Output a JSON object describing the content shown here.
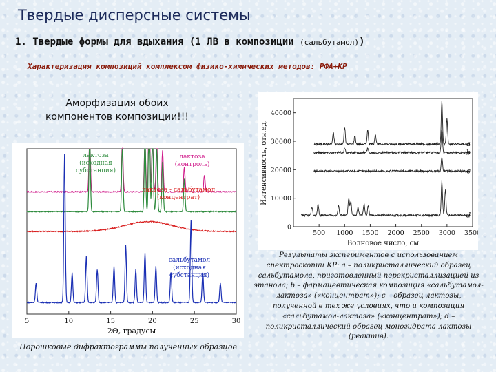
{
  "slide": {
    "title": "Твердые дисперсные системы",
    "subtitle_main": "1. Твердые формы для вдыхания (1 ЛВ в композиции ",
    "subtitle_paren": "(сальбутамол)",
    "subtitle_end": ")",
    "method": "Характеризация композиций комплексом физико-химических методов: РФА+КР",
    "amorph_line1": "Аморфизация обоих",
    "amorph_line2": "компонентов композиции!!!",
    "caption_left": "Порошковые дифрактограммы полученных образцов",
    "caption_right": "Результаты экспериментов с использованием спектроскопии КР: a – поликристаллический образец сальбутамола, приготовленный перекристаллизацией из этанола; b – фармацевтическая композиция «сальбутамол-лактоза» («концентрат»); c – образец лактозы, полученной в тех же условиях, что и композиция «сальбутамол-лактоза» («концентрат»); d – поликристаллический образец моногидрата лактозы (реактив)."
  },
  "chart_data": [
    {
      "type": "line",
      "xlabel": "2Θ, градусы",
      "ylabel": "",
      "xlim": [
        5,
        30
      ],
      "x_ticks": [
        "5",
        "10",
        "15",
        "20",
        "25",
        "30"
      ],
      "grid": false,
      "series": [
        {
          "name": "лактоза (контроль)",
          "color": "#d01c8b",
          "baseline": 0.74,
          "peaks": [
            [
              12.5,
              0.35
            ],
            [
              16.4,
              0.3
            ],
            [
              19.1,
              0.3
            ],
            [
              19.6,
              0.52
            ],
            [
              20.0,
              0.4
            ],
            [
              20.5,
              0.32
            ],
            [
              21.2,
              0.25
            ],
            [
              23.8,
              0.15
            ],
            [
              26.2,
              0.1
            ]
          ]
        },
        {
          "name": "лактоза (исходная субстанция)",
          "color": "#2e8b3d",
          "baseline": 0.62,
          "peaks": [
            [
              12.5,
              0.45
            ],
            [
              16.4,
              0.4
            ],
            [
              19.1,
              0.45
            ],
            [
              19.6,
              0.7
            ],
            [
              20.0,
              0.55
            ],
            [
              20.5,
              0.4
            ],
            [
              21.2,
              0.3
            ],
            [
              23.8,
              0.2
            ]
          ]
        },
        {
          "name": "лактоза - сальбутамол (концентрат)",
          "color": "#d81e1e",
          "baseline": 0.5,
          "halo": true,
          "peaks": []
        },
        {
          "name": "сальбутамол (исходная субстанция)",
          "color": "#1a2fb4",
          "baseline": 0.07,
          "peaks": [
            [
              6.1,
              0.12
            ],
            [
              9.5,
              0.9
            ],
            [
              10.4,
              0.18
            ],
            [
              12.1,
              0.28
            ],
            [
              13.4,
              0.2
            ],
            [
              15.4,
              0.22
            ],
            [
              16.8,
              0.35
            ],
            [
              18.0,
              0.2
            ],
            [
              19.1,
              0.3
            ],
            [
              20.4,
              0.22
            ],
            [
              22.2,
              0.18
            ],
            [
              24.6,
              0.5
            ],
            [
              26.0,
              0.18
            ],
            [
              28.1,
              0.12
            ]
          ]
        }
      ]
    },
    {
      "type": "line",
      "xlabel": "Волновое число, см",
      "ylabel": "Интенсивность, отн.ед.",
      "xlim": [
        0,
        3500
      ],
      "ylim": [
        0,
        45000
      ],
      "x_ticks": [
        "500",
        "1000",
        "1500",
        "2000",
        "2500",
        "3000",
        "3500"
      ],
      "y_ticks": [
        "0",
        "10000",
        "20000",
        "30000",
        "40000"
      ],
      "grid": false,
      "series": [
        {
          "name": "a",
          "color": "#222",
          "offset": 29000,
          "peaks": [
            [
              780,
              4000
            ],
            [
              1000,
              6000
            ],
            [
              1200,
              3000
            ],
            [
              1450,
              5000
            ],
            [
              1600,
              3500
            ],
            [
              2900,
              15000
            ],
            [
              3000,
              9000
            ]
          ]
        },
        {
          "name": "b",
          "color": "#222",
          "offset": 26000,
          "peaks": [
            [
              1000,
              1500
            ],
            [
              1450,
              1500
            ],
            [
              2900,
              8000
            ]
          ]
        },
        {
          "name": "c",
          "color": "#222",
          "offset": 19500,
          "peaks": [
            [
              2900,
              5000
            ]
          ]
        },
        {
          "name": "d",
          "color": "#222",
          "offset": 4000,
          "peaks": [
            [
              360,
              3000
            ],
            [
              480,
              4000
            ],
            [
              880,
              3500
            ],
            [
              1080,
              6000
            ],
            [
              1120,
              5000
            ],
            [
              1260,
              3000
            ],
            [
              1380,
              4000
            ],
            [
              1460,
              3500
            ],
            [
              2900,
              12000
            ],
            [
              2970,
              9000
            ]
          ]
        }
      ]
    }
  ]
}
